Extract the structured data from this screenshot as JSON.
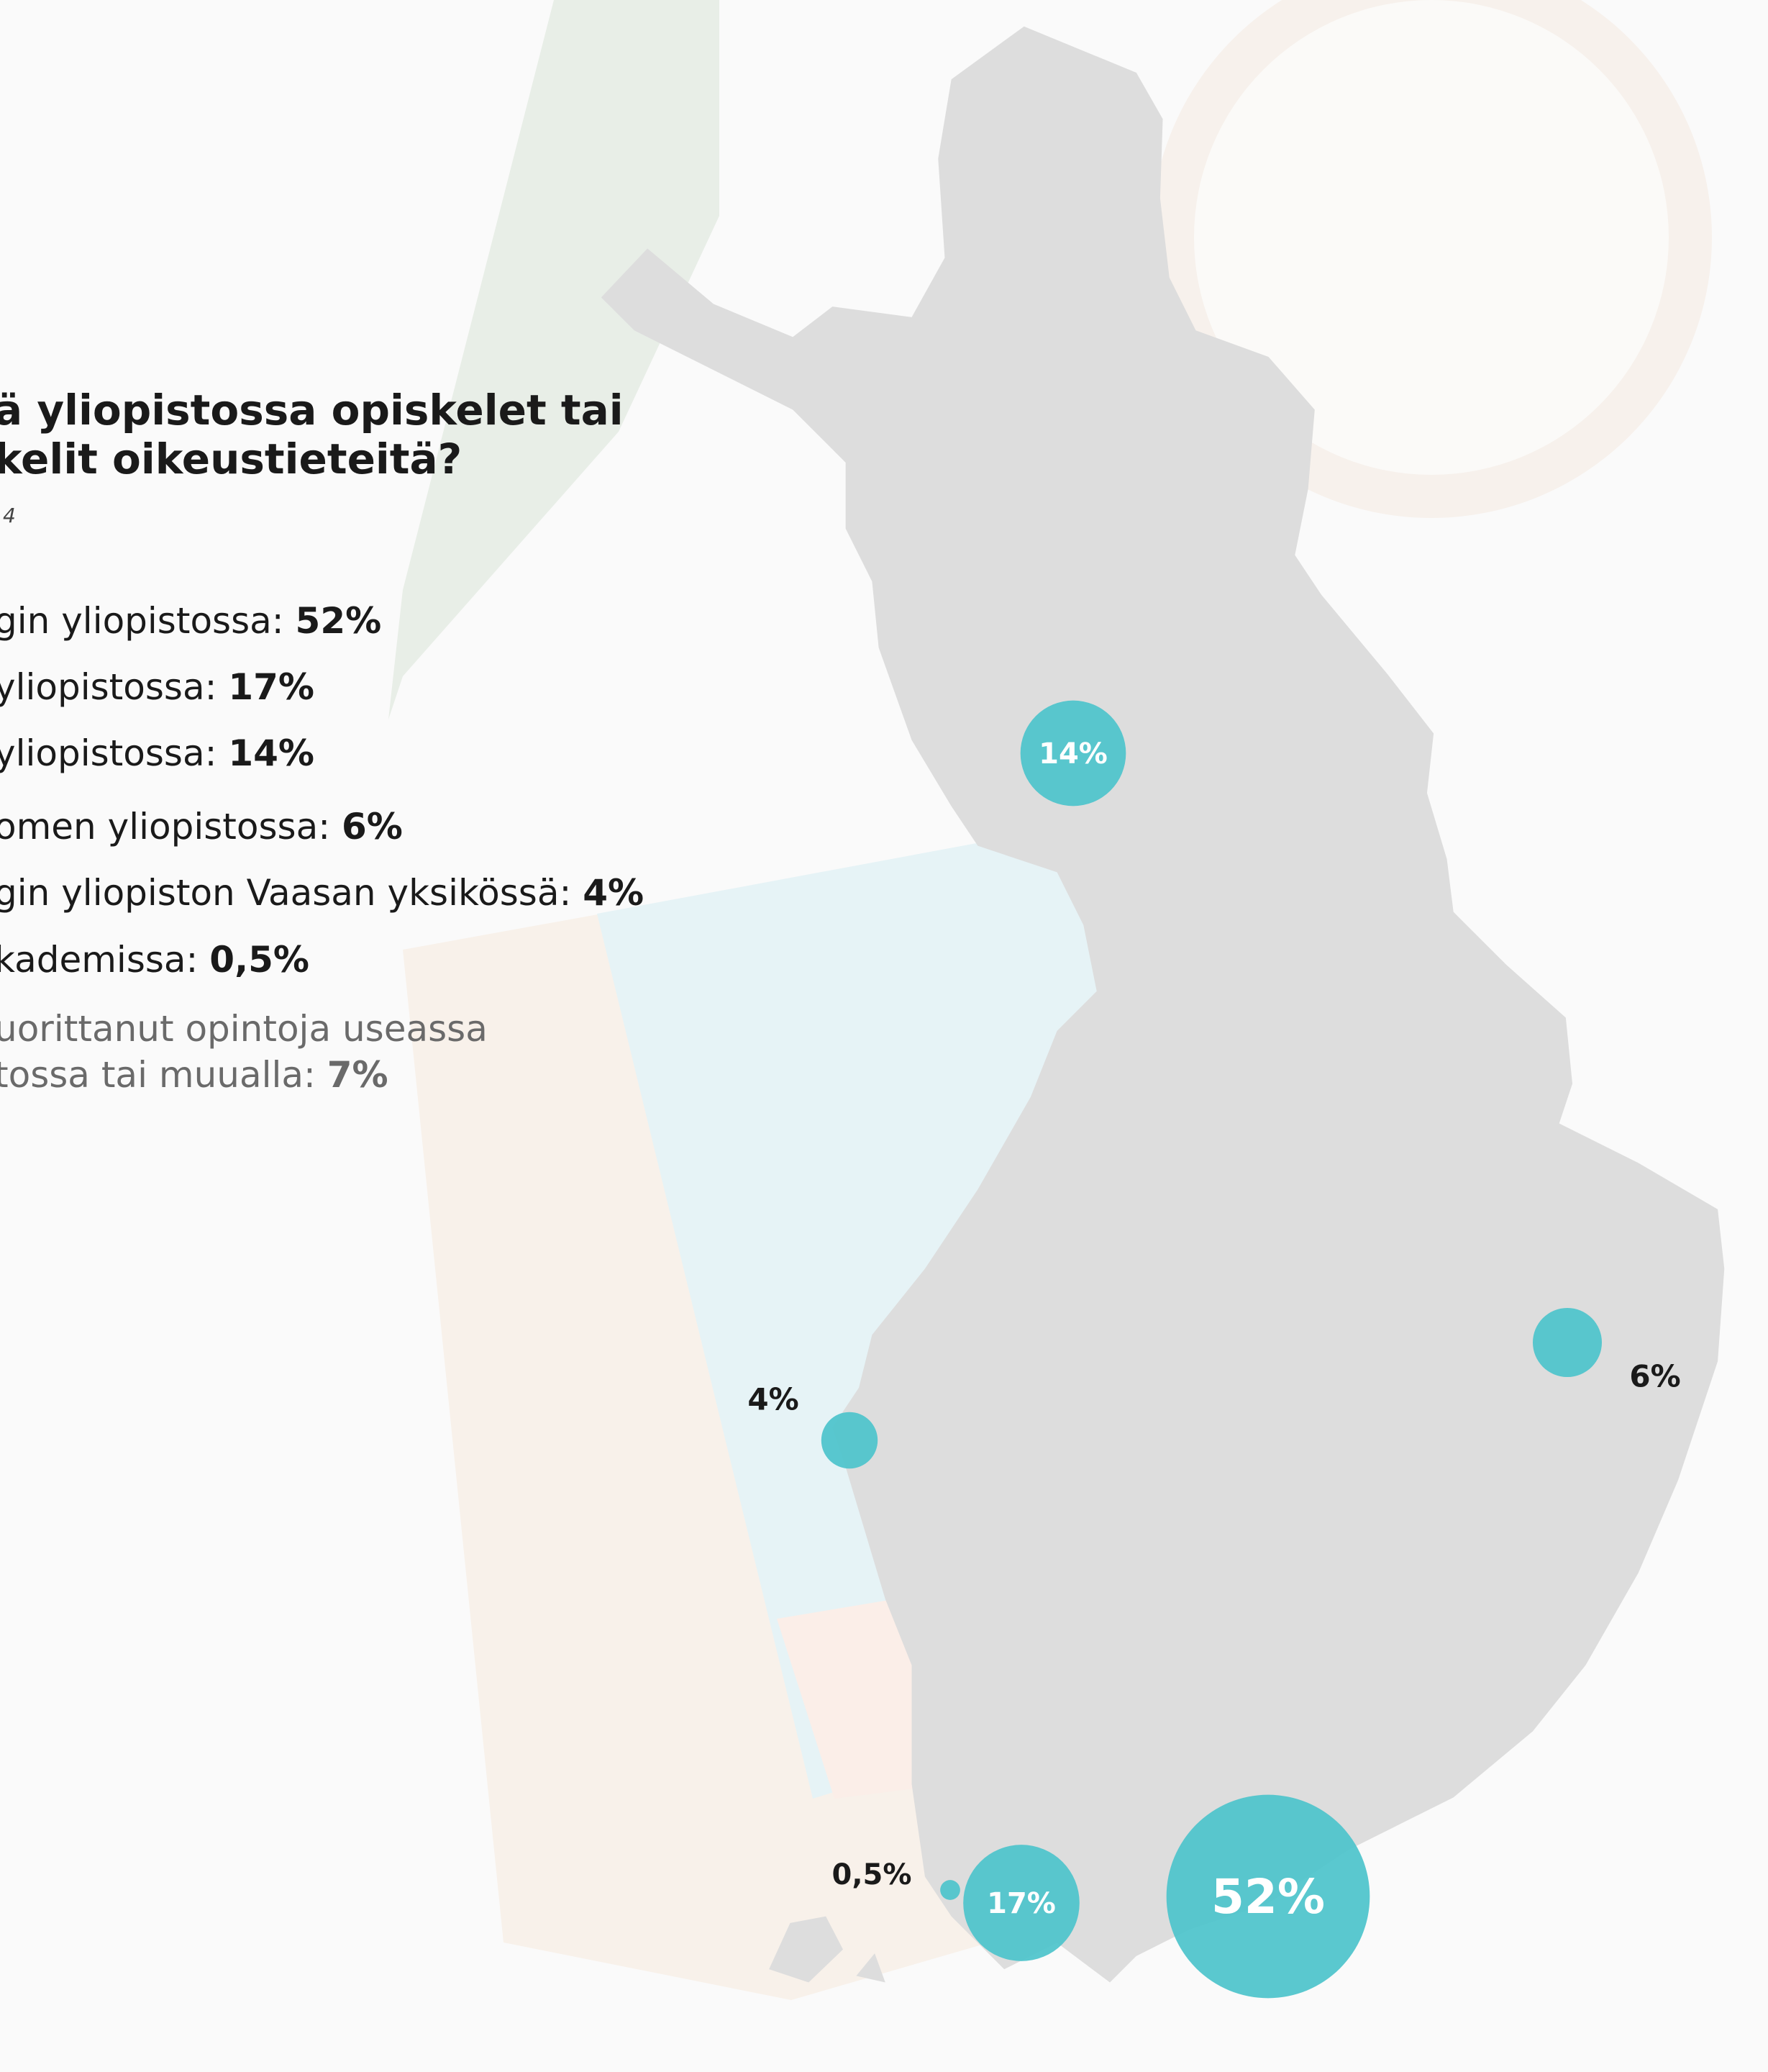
{
  "header": {
    "title_lines": [
      "ä yliopistossa opiskelet tai",
      "kelit oikeustieteitä?"
    ],
    "subtitle": "4"
  },
  "items": [
    {
      "text": [
        "gin yliopistossa: "
      ],
      "value": "52%"
    },
    {
      "text": [
        "yliopistossa: "
      ],
      "value": "17%"
    },
    {
      "text": [
        "yliopistossa: "
      ],
      "value": "14%"
    },
    {
      "text": [
        "omen yliopistossa: "
      ],
      "value": "6%"
    },
    {
      "text": [
        "gin yliopiston Vaasan yksikössä: "
      ],
      "value": "4%"
    },
    {
      "text": [
        "kademissa: "
      ],
      "value": "0,5%"
    },
    {
      "text": [
        "uorittanut opintoja useassa",
        "tossa tai muualla: "
      ],
      "value": "7%"
    }
  ],
  "chart_data": {
    "type": "bubble-map",
    "color": "#4cc3cb",
    "values": [
      52,
      17,
      14,
      6,
      4,
      0.5
    ],
    "value_labels": [
      "52%",
      "17%",
      "14%",
      "6%",
      "4%",
      "0,5%"
    ]
  }
}
